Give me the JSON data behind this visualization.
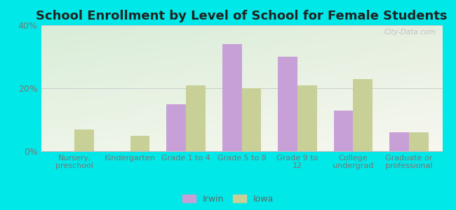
{
  "title": "School Enrollment by Level of School for Female Students",
  "categories": [
    "Nursery,\npreschool",
    "Kindergarten",
    "Grade 1 to 4",
    "Grade 5 to 8",
    "Grade 9 to\n12",
    "College\nundergrad",
    "Graduate or\nprofessional"
  ],
  "irwin": [
    0,
    0,
    15,
    34,
    30,
    13,
    6
  ],
  "iowa": [
    7,
    5,
    21,
    20,
    21,
    23,
    6
  ],
  "irwin_color": "#c8a0d8",
  "iowa_color": "#c8d098",
  "background_color": "#00e8e8",
  "ylim": [
    0,
    40
  ],
  "yticks": [
    0,
    20,
    40
  ],
  "ytick_labels": [
    "0%",
    "20%",
    "40%"
  ],
  "legend_labels": [
    "Irwin",
    "Iowa"
  ],
  "title_fontsize": 13,
  "watermark": "City-Data.com",
  "grad_topleft": "#d8edd8",
  "grad_topright": "#e8f0e0",
  "grad_bottomleft": "#edf5e8",
  "grad_bottomright": "#f8f8f0"
}
